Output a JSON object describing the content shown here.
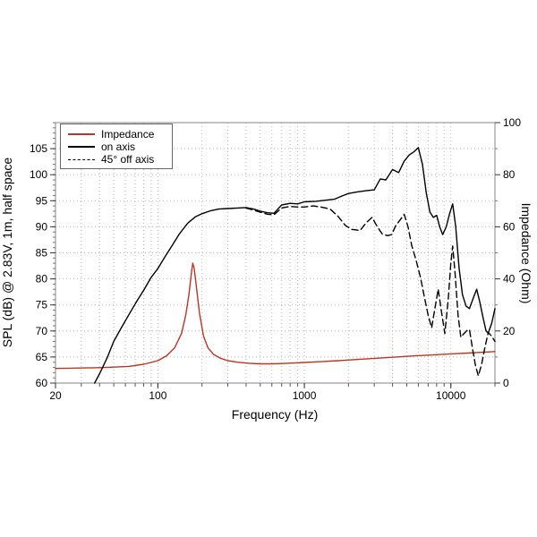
{
  "chart_data": {
    "type": "line",
    "xlabel": "Frequency (Hz)",
    "ylabel_left": "SPL (dB) @ 2.83V, 1m, half space",
    "ylabel_right": "Impedance (Ohm)",
    "x_axis": {
      "scale": "log",
      "min": 20,
      "max": 20000,
      "labeled_ticks": [
        20,
        100,
        1000,
        10000
      ],
      "grid_ticks": [
        30,
        40,
        50,
        60,
        70,
        80,
        90,
        100,
        200,
        300,
        400,
        500,
        600,
        700,
        800,
        900,
        1000,
        2000,
        3000,
        4000,
        5000,
        6000,
        7000,
        8000,
        9000,
        10000
      ]
    },
    "y_left": {
      "label": "SPL (dB)",
      "min": 60,
      "max": 110,
      "labeled_ticks": [
        60,
        65,
        70,
        75,
        80,
        85,
        90,
        95,
        100,
        105
      ],
      "grid_ticks": [
        65,
        70,
        75,
        80,
        85,
        90,
        95,
        100,
        105
      ],
      "minor_step": 1
    },
    "y_right": {
      "label": "Impedance (Ohm)",
      "min": 0,
      "max": 100,
      "labeled_ticks": [
        0,
        20,
        40,
        60,
        80,
        100
      ],
      "minor_ticks": [
        10,
        30,
        50,
        70,
        90
      ]
    },
    "grid": {
      "on": true,
      "color": "#b8b8b8",
      "frame_color": "#999999"
    },
    "legend": {
      "position": "top-left",
      "entries": [
        {
          "label": "Impedance",
          "color": "#bb3524",
          "style": "solid"
        },
        {
          "label": "on axis",
          "color": "#000000",
          "style": "solid"
        },
        {
          "label": "45° off axis",
          "color": "#000000",
          "style": "dashed"
        }
      ]
    },
    "series": [
      {
        "name": "Impedance",
        "axis": "right",
        "unit": "Ohm",
        "color": "#bb3524",
        "style": "solid",
        "points": [
          [
            20,
            5.6
          ],
          [
            25,
            5.7
          ],
          [
            32,
            5.8
          ],
          [
            40,
            5.9
          ],
          [
            50,
            6.1
          ],
          [
            63,
            6.4
          ],
          [
            80,
            7.2
          ],
          [
            100,
            8.6
          ],
          [
            115,
            10.5
          ],
          [
            130,
            13.5
          ],
          [
            145,
            19
          ],
          [
            155,
            26
          ],
          [
            163,
            34
          ],
          [
            170,
            43
          ],
          [
            173,
            46
          ],
          [
            177,
            44
          ],
          [
            183,
            37
          ],
          [
            192,
            27
          ],
          [
            205,
            18
          ],
          [
            220,
            13.5
          ],
          [
            240,
            11
          ],
          [
            270,
            9.4
          ],
          [
            300,
            8.6
          ],
          [
            350,
            8.0
          ],
          [
            420,
            7.6
          ],
          [
            500,
            7.4
          ],
          [
            600,
            7.4
          ],
          [
            700,
            7.5
          ],
          [
            850,
            7.7
          ],
          [
            1000,
            7.9
          ],
          [
            1300,
            8.2
          ],
          [
            1700,
            8.6
          ],
          [
            2200,
            9.0
          ],
          [
            3000,
            9.5
          ],
          [
            4000,
            9.9
          ],
          [
            5500,
            10.4
          ],
          [
            7500,
            10.8
          ],
          [
            10000,
            11.2
          ],
          [
            13000,
            11.5
          ],
          [
            16000,
            11.8
          ],
          [
            20000,
            12.1
          ]
        ]
      },
      {
        "name": "on axis",
        "axis": "left",
        "unit": "dB",
        "color": "#000000",
        "style": "solid",
        "points": [
          [
            37,
            60
          ],
          [
            40,
            61.8
          ],
          [
            45,
            64.8
          ],
          [
            50,
            68
          ],
          [
            56,
            70.5
          ],
          [
            63,
            73
          ],
          [
            71,
            75.5
          ],
          [
            80,
            77.8
          ],
          [
            90,
            80.3
          ],
          [
            100,
            82
          ],
          [
            112,
            84.3
          ],
          [
            125,
            86.4
          ],
          [
            140,
            88.6
          ],
          [
            160,
            90.7
          ],
          [
            180,
            91.9
          ],
          [
            200,
            92.5
          ],
          [
            230,
            93.1
          ],
          [
            260,
            93.4
          ],
          [
            300,
            93.5
          ],
          [
            350,
            93.6
          ],
          [
            400,
            93.7
          ],
          [
            450,
            93.4
          ],
          [
            500,
            93.0
          ],
          [
            560,
            92.7
          ],
          [
            620,
            92.6
          ],
          [
            700,
            94.2
          ],
          [
            800,
            94.5
          ],
          [
            900,
            94.4
          ],
          [
            1000,
            94.8
          ],
          [
            1200,
            94.9
          ],
          [
            1400,
            95.1
          ],
          [
            1600,
            95.3
          ],
          [
            1800,
            95.9
          ],
          [
            2000,
            96.4
          ],
          [
            2300,
            96.7
          ],
          [
            2600,
            96.9
          ],
          [
            3000,
            97.1
          ],
          [
            3300,
            99.2
          ],
          [
            3600,
            99.0
          ],
          [
            4000,
            101.0
          ],
          [
            4400,
            100.4
          ],
          [
            4800,
            102.6
          ],
          [
            5200,
            103.8
          ],
          [
            5600,
            104.4
          ],
          [
            6000,
            105.2
          ],
          [
            6400,
            102.0
          ],
          [
            6800,
            96.5
          ],
          [
            7200,
            92.8
          ],
          [
            7600,
            91.8
          ],
          [
            8000,
            92.2
          ],
          [
            8400,
            90.0
          ],
          [
            8800,
            88.5
          ],
          [
            9300,
            90.0
          ],
          [
            9800,
            92.5
          ],
          [
            10300,
            94.4
          ],
          [
            10800,
            90.0
          ],
          [
            11400,
            82.0
          ],
          [
            12000,
            77.0
          ],
          [
            12700,
            74.8
          ],
          [
            13400,
            74.3
          ],
          [
            14300,
            76.5
          ],
          [
            15000,
            78.0
          ],
          [
            15800,
            75.5
          ],
          [
            16600,
            72.5
          ],
          [
            17400,
            70.0
          ],
          [
            18000,
            69.6
          ],
          [
            19000,
            71.5
          ],
          [
            20000,
            74.3
          ]
        ]
      },
      {
        "name": "45° off axis",
        "axis": "left",
        "unit": "dB",
        "color": "#000000",
        "style": "dashed",
        "points": [
          [
            400,
            93.6
          ],
          [
            450,
            93.2
          ],
          [
            500,
            92.8
          ],
          [
            560,
            92.4
          ],
          [
            620,
            92.3
          ],
          [
            700,
            93.6
          ],
          [
            800,
            93.9
          ],
          [
            900,
            93.8
          ],
          [
            1000,
            93.8
          ],
          [
            1150,
            94.0
          ],
          [
            1300,
            93.8
          ],
          [
            1500,
            93.4
          ],
          [
            1700,
            92.0
          ],
          [
            1900,
            90.3
          ],
          [
            2100,
            89.5
          ],
          [
            2400,
            89.3
          ],
          [
            2650,
            90.8
          ],
          [
            2900,
            91.8
          ],
          [
            3150,
            90.0
          ],
          [
            3400,
            88.6
          ],
          [
            3700,
            88.3
          ],
          [
            3950,
            88.5
          ],
          [
            4200,
            90.2
          ],
          [
            4500,
            91.3
          ],
          [
            4800,
            92.4
          ],
          [
            5100,
            90.0
          ],
          [
            5400,
            86.5
          ],
          [
            5800,
            83.5
          ],
          [
            6200,
            80.3
          ],
          [
            6600,
            76.5
          ],
          [
            7000,
            73.0
          ],
          [
            7400,
            70.6
          ],
          [
            7800,
            74.5
          ],
          [
            8200,
            78.0
          ],
          [
            8600,
            74.0
          ],
          [
            9100,
            69.5
          ],
          [
            9600,
            76.0
          ],
          [
            10000,
            83.0
          ],
          [
            10300,
            86.3
          ],
          [
            10700,
            81.0
          ],
          [
            11200,
            73.0
          ],
          [
            11700,
            68.8
          ],
          [
            12300,
            69.5
          ],
          [
            12900,
            70.1
          ],
          [
            13400,
            70.3
          ],
          [
            14000,
            67.0
          ],
          [
            14700,
            63.5
          ],
          [
            15400,
            61.4
          ],
          [
            16200,
            63.5
          ],
          [
            17000,
            66.5
          ],
          [
            18000,
            69.7
          ],
          [
            19000,
            69.0
          ],
          [
            20000,
            68.0
          ]
        ]
      }
    ]
  }
}
